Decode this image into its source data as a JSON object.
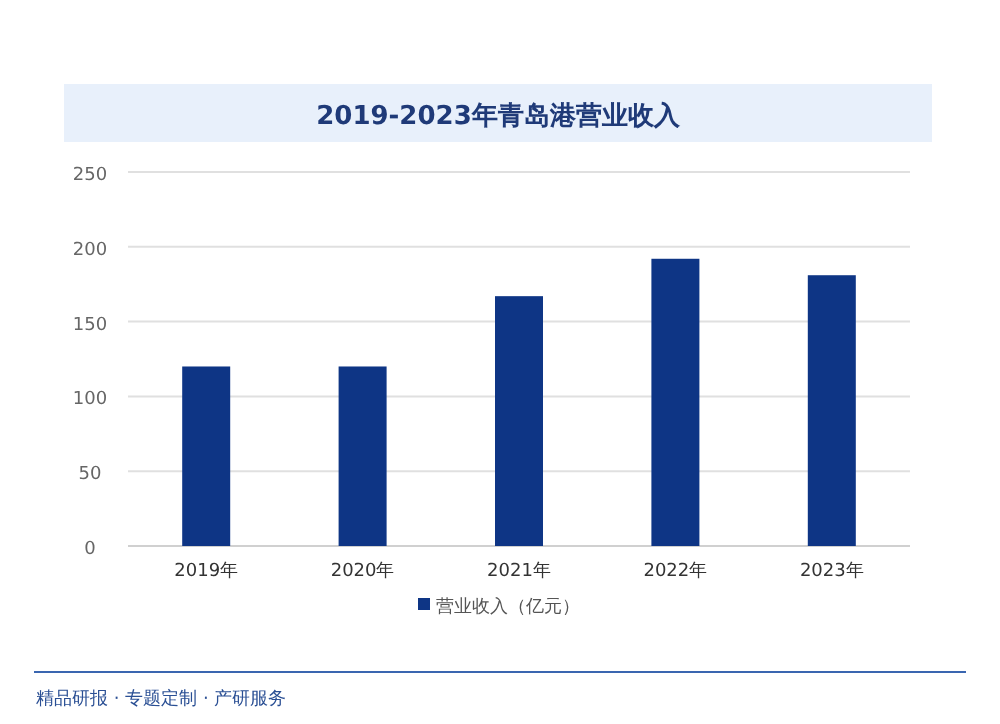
{
  "chart_data": {
    "type": "bar",
    "title": "2019-2023年青岛港营业收入",
    "categories": [
      "2019年",
      "2020年",
      "2021年",
      "2022年",
      "2023年"
    ],
    "series": [
      {
        "name": "营业收入（亿元）",
        "color": "#0e3585",
        "values": [
          120,
          120,
          167,
          192,
          181
        ]
      }
    ],
    "ylim": [
      0,
      250
    ],
    "yticks": [
      0,
      50,
      100,
      150,
      200,
      250
    ],
    "grid": "y",
    "legend": "bottom",
    "annotations": [
      "精品研报 · 专题定制 · 产研服务"
    ]
  }
}
